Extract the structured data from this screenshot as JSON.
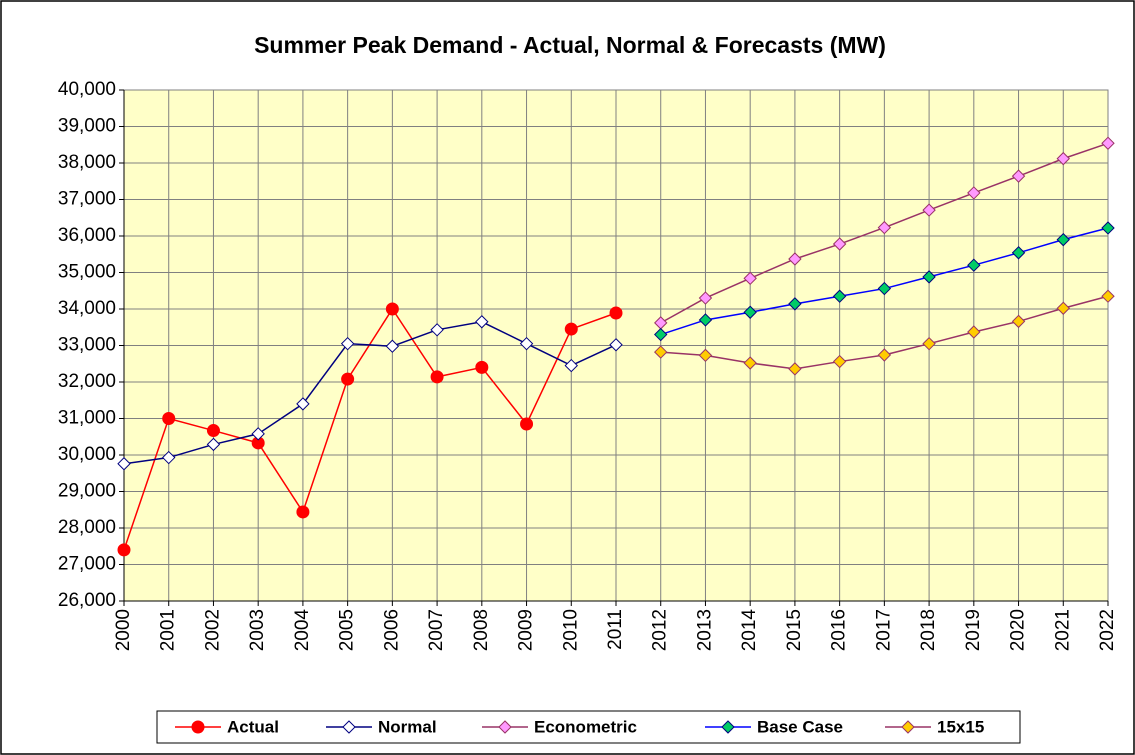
{
  "chart_data": {
    "type": "line",
    "title": "Summer Peak Demand - Actual, Normal & Forecasts (MW)",
    "categories": [
      "2000",
      "2001",
      "2002",
      "2003",
      "2004",
      "2005",
      "2006",
      "2007",
      "2008",
      "2009",
      "2010",
      "2011",
      "2012",
      "2013",
      "2014",
      "2015",
      "2016",
      "2017",
      "2018",
      "2019",
      "2020",
      "2021",
      "2022"
    ],
    "ylim": [
      26000,
      40000
    ],
    "yticks": [
      {
        "value": 26000,
        "label": "26,000"
      },
      {
        "value": 27000,
        "label": "27,000"
      },
      {
        "value": 28000,
        "label": "28,000"
      },
      {
        "value": 29000,
        "label": "29,000"
      },
      {
        "value": 30000,
        "label": "30,000"
      },
      {
        "value": 31000,
        "label": "31,000"
      },
      {
        "value": 32000,
        "label": "32,000"
      },
      {
        "value": 33000,
        "label": "33,000"
      },
      {
        "value": 34000,
        "label": "34,000"
      },
      {
        "value": 35000,
        "label": "35,000"
      },
      {
        "value": 36000,
        "label": "36,000"
      },
      {
        "value": 37000,
        "label": "37,000"
      },
      {
        "value": 38000,
        "label": "38,000"
      },
      {
        "value": 39000,
        "label": "39,000"
      },
      {
        "value": 40000,
        "label": "40,000"
      }
    ],
    "grid": true,
    "legend": "bottom",
    "background": "#ffffc8",
    "series": [
      {
        "name": "Actual",
        "color": "#ff0000",
        "marker": "circle",
        "marker_color": "#ff0000",
        "values": [
          27400,
          31000,
          30670,
          30330,
          28440,
          32080,
          34000,
          32140,
          32400,
          30850,
          33450,
          33890,
          null,
          null,
          null,
          null,
          null,
          null,
          null,
          null,
          null,
          null,
          null
        ]
      },
      {
        "name": "Normal",
        "color": "#000080",
        "marker": "diamond",
        "marker_color": "#ffffff",
        "values": [
          29760,
          29930,
          30290,
          30580,
          31400,
          33050,
          32980,
          33430,
          33650,
          33050,
          32450,
          33020,
          null,
          null,
          null,
          null,
          null,
          null,
          null,
          null,
          null,
          null,
          null
        ]
      },
      {
        "name": "Econometric",
        "color": "#993366",
        "marker": "diamond",
        "marker_color": "#ff99ff",
        "values": [
          null,
          null,
          null,
          null,
          null,
          null,
          null,
          null,
          null,
          null,
          null,
          null,
          33620,
          34300,
          34840,
          35370,
          35780,
          36230,
          36710,
          37180,
          37640,
          38120,
          38540
        ]
      },
      {
        "name": "Base Case",
        "color": "#0000ff",
        "marker": "diamond",
        "marker_color": "#00cc66",
        "values": [
          null,
          null,
          null,
          null,
          null,
          null,
          null,
          null,
          null,
          null,
          null,
          null,
          33300,
          33700,
          33910,
          34140,
          34350,
          34560,
          34880,
          35200,
          35540,
          35900,
          36220
        ]
      },
      {
        "name": "15x15",
        "color": "#993366",
        "marker": "diamond",
        "marker_color": "#ffcc00",
        "values": [
          null,
          null,
          null,
          null,
          null,
          null,
          null,
          null,
          null,
          null,
          null,
          null,
          32820,
          32730,
          32520,
          32360,
          32560,
          32740,
          33050,
          33370,
          33660,
          34020,
          34350
        ]
      }
    ]
  }
}
